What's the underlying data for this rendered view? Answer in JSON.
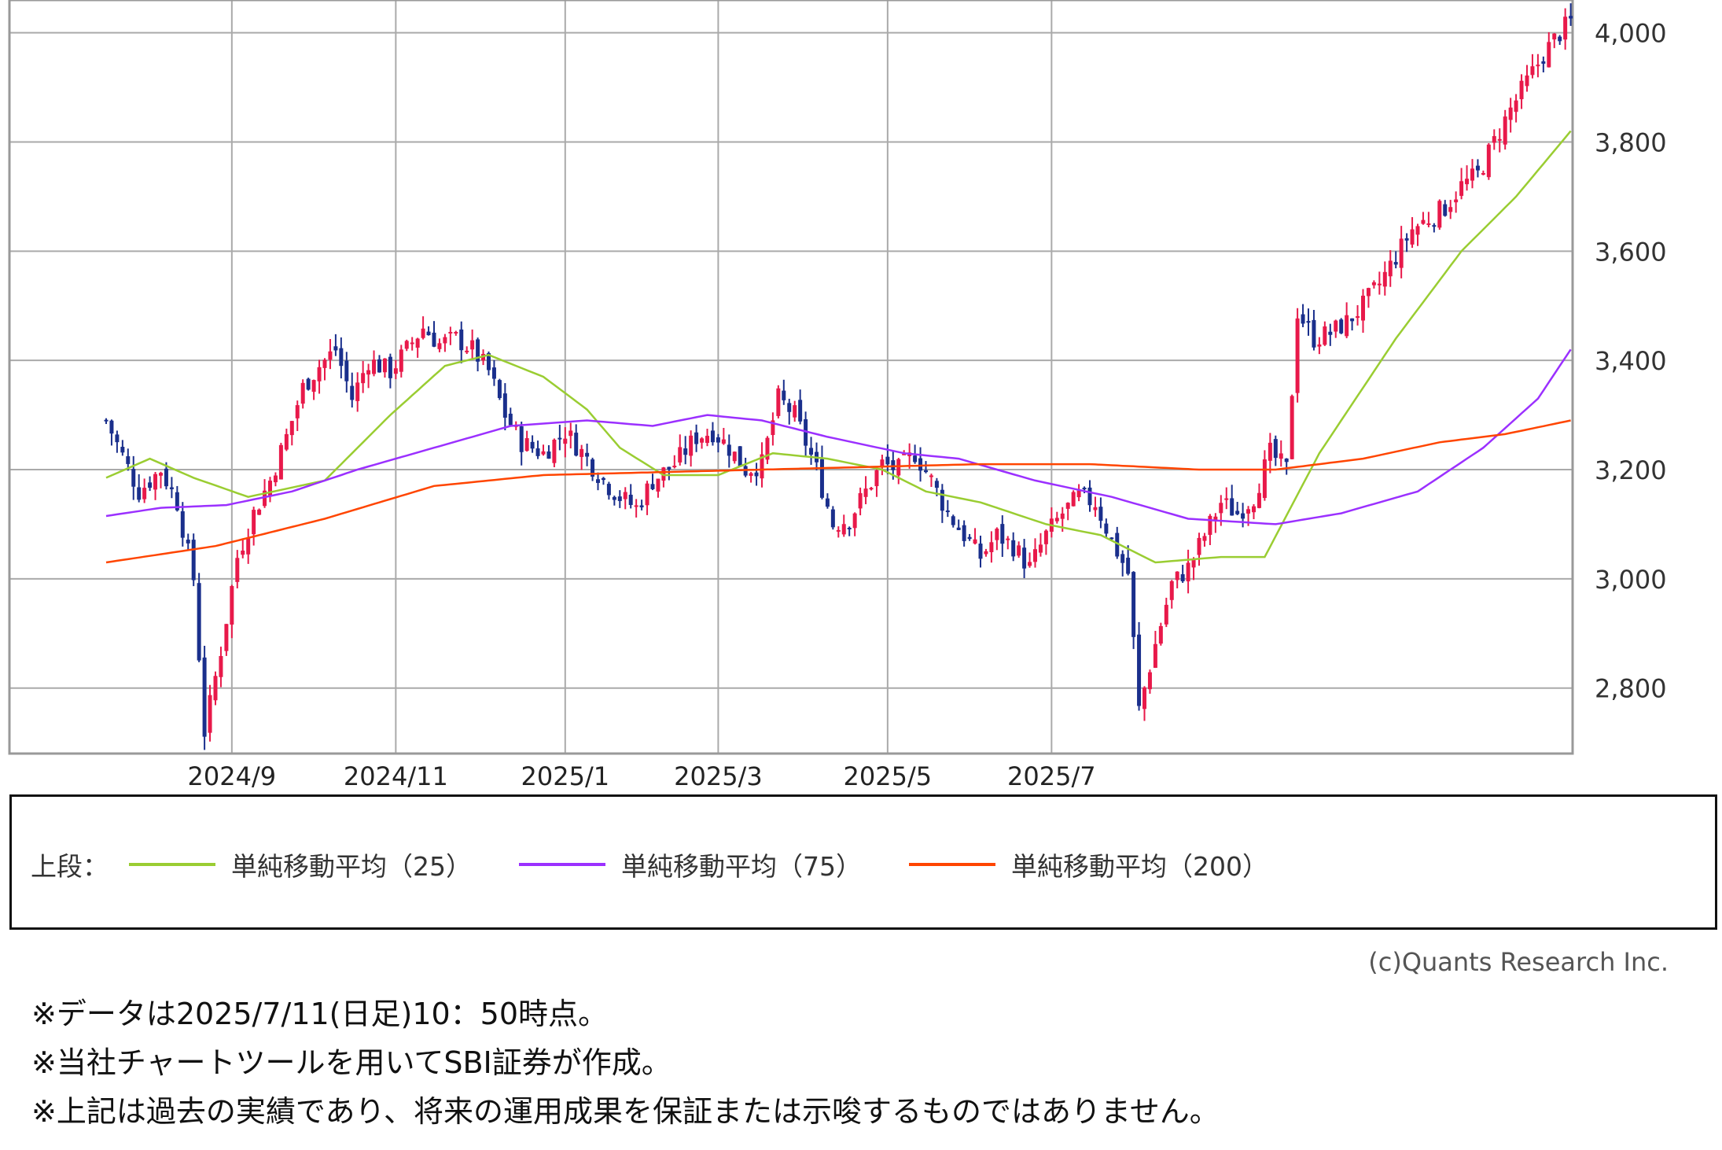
{
  "chart_data": {
    "type": "candlestick",
    "x_ticks": [
      "2024/9",
      "2024/11",
      "2025/1",
      "2025/3",
      "2025/5",
      "2025/7"
    ],
    "y_ticks": [
      "2,800",
      "3,000",
      "3,200",
      "3,400",
      "3,600",
      "3,800",
      "4,000"
    ],
    "ylim": [
      2680,
      4060
    ],
    "grid": true,
    "up_color": "#e8194a",
    "down_color": "#1a2f8c",
    "price_path": [
      [
        0,
        3290
      ],
      [
        6,
        3160
      ],
      [
        10,
        3200
      ],
      [
        13,
        3140
      ],
      [
        16,
        3000
      ],
      [
        18,
        2720
      ],
      [
        21,
        2870
      ],
      [
        24,
        3040
      ],
      [
        27,
        3120
      ],
      [
        30,
        3180
      ],
      [
        33,
        3260
      ],
      [
        36,
        3350
      ],
      [
        39,
        3390
      ],
      [
        42,
        3420
      ],
      [
        45,
        3330
      ],
      [
        48,
        3400
      ],
      [
        52,
        3380
      ],
      [
        55,
        3420
      ],
      [
        58,
        3460
      ],
      [
        61,
        3430
      ],
      [
        64,
        3440
      ],
      [
        67,
        3420
      ],
      [
        70,
        3380
      ],
      [
        73,
        3300
      ],
      [
        76,
        3250
      ],
      [
        80,
        3230
      ],
      [
        84,
        3270
      ],
      [
        88,
        3220
      ],
      [
        91,
        3180
      ],
      [
        94,
        3150
      ],
      [
        97,
        3130
      ],
      [
        100,
        3180
      ],
      [
        104,
        3210
      ],
      [
        108,
        3260
      ],
      [
        111,
        3270
      ],
      [
        114,
        3240
      ],
      [
        117,
        3200
      ],
      [
        120,
        3210
      ],
      [
        123,
        3330
      ],
      [
        126,
        3300
      ],
      [
        130,
        3200
      ],
      [
        133,
        3100
      ],
      [
        136,
        3110
      ],
      [
        139,
        3160
      ],
      [
        142,
        3210
      ],
      [
        145,
        3200
      ],
      [
        148,
        3230
      ],
      [
        151,
        3180
      ],
      [
        154,
        3120
      ],
      [
        157,
        3080
      ],
      [
        160,
        3040
      ],
      [
        163,
        3080
      ],
      [
        166,
        3060
      ],
      [
        169,
        3020
      ],
      [
        172,
        3080
      ],
      [
        175,
        3120
      ],
      [
        178,
        3150
      ],
      [
        181,
        3140
      ],
      [
        184,
        3070
      ],
      [
        187,
        3010
      ],
      [
        189,
        2760
      ],
      [
        192,
        2880
      ],
      [
        195,
        2990
      ],
      [
        198,
        3020
      ],
      [
        201,
        3080
      ],
      [
        204,
        3140
      ],
      [
        207,
        3120
      ],
      [
        210,
        3150
      ],
      [
        213,
        3230
      ],
      [
        216,
        3200
      ],
      [
        218,
        3490
      ],
      [
        221,
        3440
      ],
      [
        224,
        3450
      ],
      [
        227,
        3470
      ],
      [
        230,
        3500
      ],
      [
        233,
        3540
      ],
      [
        236,
        3590
      ],
      [
        239,
        3640
      ],
      [
        242,
        3660
      ],
      [
        245,
        3680
      ],
      [
        248,
        3720
      ],
      [
        251,
        3740
      ],
      [
        254,
        3800
      ],
      [
        257,
        3860
      ],
      [
        260,
        3910
      ],
      [
        263,
        3960
      ],
      [
        266,
        4000
      ],
      [
        268,
        4020
      ]
    ],
    "series": [
      {
        "name": "単純移動平均（25）",
        "color": "#9acd32",
        "points": [
          [
            0,
            3185
          ],
          [
            8,
            3220
          ],
          [
            16,
            3185
          ],
          [
            26,
            3150
          ],
          [
            40,
            3180
          ],
          [
            52,
            3300
          ],
          [
            62,
            3390
          ],
          [
            70,
            3410
          ],
          [
            80,
            3370
          ],
          [
            88,
            3310
          ],
          [
            94,
            3240
          ],
          [
            102,
            3190
          ],
          [
            112,
            3190
          ],
          [
            122,
            3230
          ],
          [
            132,
            3220
          ],
          [
            142,
            3200
          ],
          [
            150,
            3160
          ],
          [
            160,
            3140
          ],
          [
            172,
            3100
          ],
          [
            182,
            3080
          ],
          [
            192,
            3030
          ],
          [
            204,
            3040
          ],
          [
            212,
            3040
          ],
          [
            222,
            3230
          ],
          [
            236,
            3440
          ],
          [
            248,
            3600
          ],
          [
            258,
            3700
          ],
          [
            268,
            3820
          ]
        ]
      },
      {
        "name": "単純移動平均（75）",
        "color": "#9b30ff",
        "points": [
          [
            0,
            3115
          ],
          [
            10,
            3130
          ],
          [
            22,
            3135
          ],
          [
            34,
            3160
          ],
          [
            46,
            3200
          ],
          [
            60,
            3240
          ],
          [
            74,
            3280
          ],
          [
            88,
            3290
          ],
          [
            100,
            3280
          ],
          [
            110,
            3300
          ],
          [
            120,
            3290
          ],
          [
            132,
            3260
          ],
          [
            146,
            3230
          ],
          [
            156,
            3220
          ],
          [
            170,
            3180
          ],
          [
            184,
            3150
          ],
          [
            198,
            3110
          ],
          [
            214,
            3100
          ],
          [
            226,
            3120
          ],
          [
            240,
            3160
          ],
          [
            252,
            3240
          ],
          [
            262,
            3330
          ],
          [
            268,
            3420
          ]
        ]
      },
      {
        "name": "単純移動平均（200）",
        "color": "#ff4500",
        "points": [
          [
            0,
            3030
          ],
          [
            20,
            3060
          ],
          [
            40,
            3110
          ],
          [
            60,
            3170
          ],
          [
            80,
            3190
          ],
          [
            100,
            3195
          ],
          [
            120,
            3200
          ],
          [
            140,
            3205
          ],
          [
            160,
            3210
          ],
          [
            180,
            3210
          ],
          [
            200,
            3200
          ],
          [
            214,
            3200
          ],
          [
            230,
            3220
          ],
          [
            244,
            3250
          ],
          [
            256,
            3265
          ],
          [
            268,
            3290
          ]
        ]
      }
    ]
  },
  "legend": {
    "prefix": "上段：",
    "items": [
      {
        "label": "単純移動平均（25）",
        "color": "#9acd32"
      },
      {
        "label": "単純移動平均（75）",
        "color": "#9b30ff"
      },
      {
        "label": "単純移動平均（200）",
        "color": "#ff4500"
      }
    ]
  },
  "credit": "(c)Quants Research Inc.",
  "notes": [
    "※データは2025/7/11(日足)10：50時点。",
    "※当社チャートツールを用いてSBI証券が作成。",
    "※上記は過去の実績であり、将来の運用成果を保証または示唆するものではありません。"
  ]
}
